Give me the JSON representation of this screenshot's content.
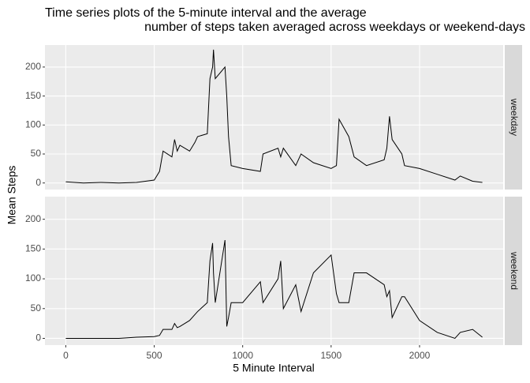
{
  "chart_data": {
    "type": "line",
    "title": [
      "Time series plots of the 5-minute interval and the average",
      "number of steps taken averaged across weekdays or weekend-days"
    ],
    "x_label": "5 Minute Interval",
    "y_label": "Mean Steps",
    "x": [
      0,
      100,
      200,
      300,
      400,
      500,
      530,
      550,
      600,
      615,
      630,
      645,
      700,
      730,
      745,
      800,
      815,
      830,
      835,
      845,
      900,
      910,
      920,
      935,
      1000,
      1100,
      1115,
      1200,
      1215,
      1230,
      1300,
      1330,
      1400,
      1500,
      1530,
      1545,
      1600,
      1630,
      1700,
      1800,
      1815,
      1830,
      1845,
      1900,
      1915,
      2000,
      2100,
      2200,
      2230,
      2300,
      2355
    ],
    "series": [
      {
        "name": "weekday",
        "color": "#000000",
        "values": [
          2,
          0,
          1,
          0,
          1,
          5,
          20,
          55,
          45,
          75,
          55,
          65,
          55,
          70,
          80,
          85,
          180,
          200,
          230,
          180,
          200,
          150,
          80,
          30,
          25,
          20,
          50,
          60,
          45,
          60,
          30,
          50,
          35,
          25,
          30,
          110,
          80,
          45,
          30,
          40,
          60,
          115,
          75,
          50,
          30,
          25,
          15,
          5,
          12,
          3,
          1
        ]
      },
      {
        "name": "weekend",
        "color": "#000000",
        "values": [
          0,
          0,
          0,
          0,
          2,
          3,
          5,
          15,
          15,
          25,
          18,
          20,
          30,
          40,
          45,
          60,
          130,
          160,
          110,
          60,
          165,
          20,
          35,
          60,
          60,
          95,
          60,
          100,
          130,
          50,
          90,
          45,
          110,
          140,
          75,
          60,
          60,
          110,
          110,
          90,
          70,
          80,
          35,
          70,
          70,
          30,
          10,
          0,
          10,
          15,
          2
        ]
      }
    ],
    "xlim": [
      -117.75,
      2472.75
    ],
    "xticks": [
      0,
      500,
      1000,
      1500,
      2000
    ],
    "ylim": [
      -11.3,
      238
    ],
    "yticks": [
      0,
      50,
      100,
      150,
      200
    ],
    "grid": true
  }
}
